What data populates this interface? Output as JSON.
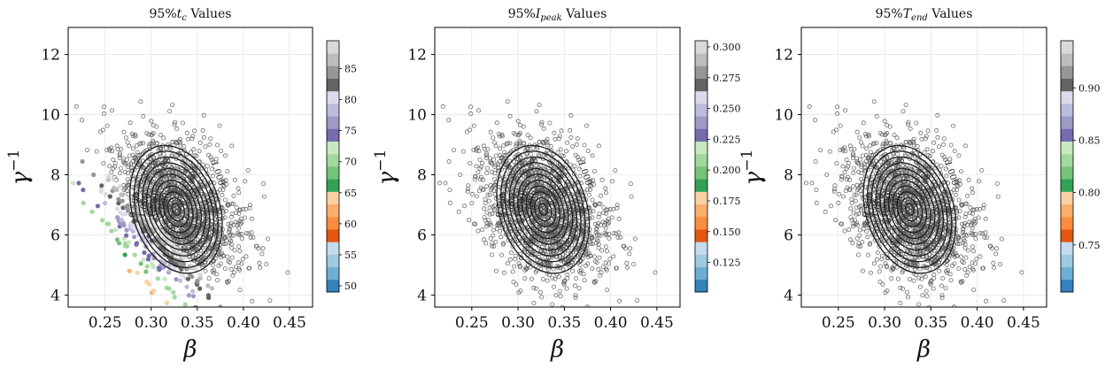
{
  "chart_data": [
    {
      "type": "scatter",
      "title": "95%t_c Values",
      "title_parts": {
        "prefix": "95%",
        "var": "t",
        "sub": "c",
        "suffix": " Values"
      },
      "xlabel": "β",
      "ylabel": "γ⁻¹",
      "ylabel_parts": {
        "base": "γ",
        "sup": "−1"
      },
      "xlim": [
        0.21,
        0.475
      ],
      "ylim": [
        3.6,
        12.9
      ],
      "xticks": [
        0.25,
        0.3,
        0.35,
        0.4,
        0.45
      ],
      "xtick_labels": [
        "0.25",
        "0.30",
        "0.35",
        "0.40",
        "0.45"
      ],
      "yticks": [
        4,
        6,
        8,
        10,
        12
      ],
      "ytick_labels": [
        "4",
        "6",
        "8",
        "10",
        "12"
      ],
      "grid": true,
      "colorbar": {
        "min": 49,
        "max": 89.5,
        "ticks": [
          50,
          55,
          60,
          65,
          70,
          75,
          80,
          85
        ],
        "tick_labels": [
          "50",
          "55",
          "60",
          "65",
          "70",
          "75",
          "80",
          "85"
        ]
      },
      "gradient": {
        "dir": [
          1.0,
          0.0313
        ],
        "c0": 0.39,
        "span": 0.115,
        "band_width": 2.8,
        "sigma_major": 0.19,
        "sigma_minor": 0.033
      },
      "contour_labels": [
        "0.500",
        "1.000",
        "1.500",
        "2.000"
      ]
    },
    {
      "type": "scatter",
      "title": "95%I_peak Values",
      "title_parts": {
        "prefix": "95%",
        "var": "I",
        "sub": "peak",
        "suffix": " Values"
      },
      "xlabel": "β",
      "ylabel": "γ⁻¹",
      "ylabel_parts": {
        "base": "γ",
        "sup": "−1"
      },
      "xlim": [
        0.21,
        0.475
      ],
      "ylim": [
        3.6,
        12.9
      ],
      "xticks": [
        0.25,
        0.3,
        0.35,
        0.4,
        0.45
      ],
      "xtick_labels": [
        "0.25",
        "0.30",
        "0.35",
        "0.40",
        "0.45"
      ],
      "yticks": [
        4,
        6,
        8,
        10,
        12
      ],
      "ytick_labels": [
        "4",
        "6",
        "8",
        "10",
        "12"
      ],
      "grid": true,
      "colorbar": {
        "min": 0.101,
        "max": 0.305,
        "ticks": [
          0.125,
          0.15,
          0.175,
          0.2,
          0.225,
          0.25,
          0.275,
          0.3
        ],
        "tick_labels": [
          "0.125",
          "0.150",
          "0.175",
          "0.200",
          "0.225",
          "0.250",
          "0.275",
          "0.300"
        ]
      },
      "gradient": {
        "dir": [
          0.12,
          0.0435
        ],
        "c0": -0.04,
        "span": 0.03,
        "band_width": 1.25,
        "sigma_major": 0.115,
        "sigma_minor": 0.028
      },
      "contour_labels": [
        "0.500",
        "1.000",
        "1.500",
        "2.000"
      ]
    },
    {
      "type": "scatter",
      "title": "95%T_end Values",
      "title_parts": {
        "prefix": "95%",
        "var": "T",
        "sub": "end",
        "suffix": " Values"
      },
      "xlabel": "β",
      "ylabel": "γ⁻¹",
      "ylabel_parts": {
        "base": "γ",
        "sup": "−1"
      },
      "xlim": [
        0.21,
        0.475
      ],
      "ylim": [
        3.6,
        12.9
      ],
      "xticks": [
        0.25,
        0.3,
        0.35,
        0.4,
        0.45
      ],
      "xtick_labels": [
        "0.25",
        "0.30",
        "0.35",
        "0.40",
        "0.45"
      ],
      "yticks": [
        4,
        6,
        8,
        10,
        12
      ],
      "ytick_labels": [
        "4",
        "6",
        "8",
        "10",
        "12"
      ],
      "grid": true,
      "colorbar": {
        "min": 0.705,
        "max": 0.945,
        "ticks": [
          0.75,
          0.8,
          0.85,
          0.9
        ],
        "tick_labels": [
          "0.75",
          "0.80",
          "0.85",
          "0.90"
        ]
      },
      "gradient": {
        "dir": [
          0.3,
          0.0483
        ],
        "c0": 0.065,
        "span": 0.05,
        "band_width": 1.4,
        "sigma_major": 0.13,
        "sigma_minor": 0.03
      },
      "contour_labels": [
        "0.500",
        "1.000",
        "1.500",
        "2.000"
      ]
    }
  ],
  "shared": {
    "center": {
      "beta": 0.327,
      "gamma_inv": 6.85
    },
    "cloud_spread": {
      "beta": 0.035,
      "gamma_inv": 1.25
    },
    "colors": {
      "tab20c": [
        "#3182bd",
        "#6baed6",
        "#9ecae1",
        "#c6dbef",
        "#e6550d",
        "#fd8d3c",
        "#fdae6b",
        "#fdd0a2",
        "#31a354",
        "#74c476",
        "#a1d99b",
        "#c7e9c0",
        "#756bb1",
        "#9e9ac8",
        "#bcbddc",
        "#dadaeb",
        "#636363",
        "#969696",
        "#bdbdbd",
        "#d9d9d9"
      ],
      "contour": "#222222",
      "outlier_edge": "#555555",
      "grid": "#e6e6e6"
    }
  }
}
